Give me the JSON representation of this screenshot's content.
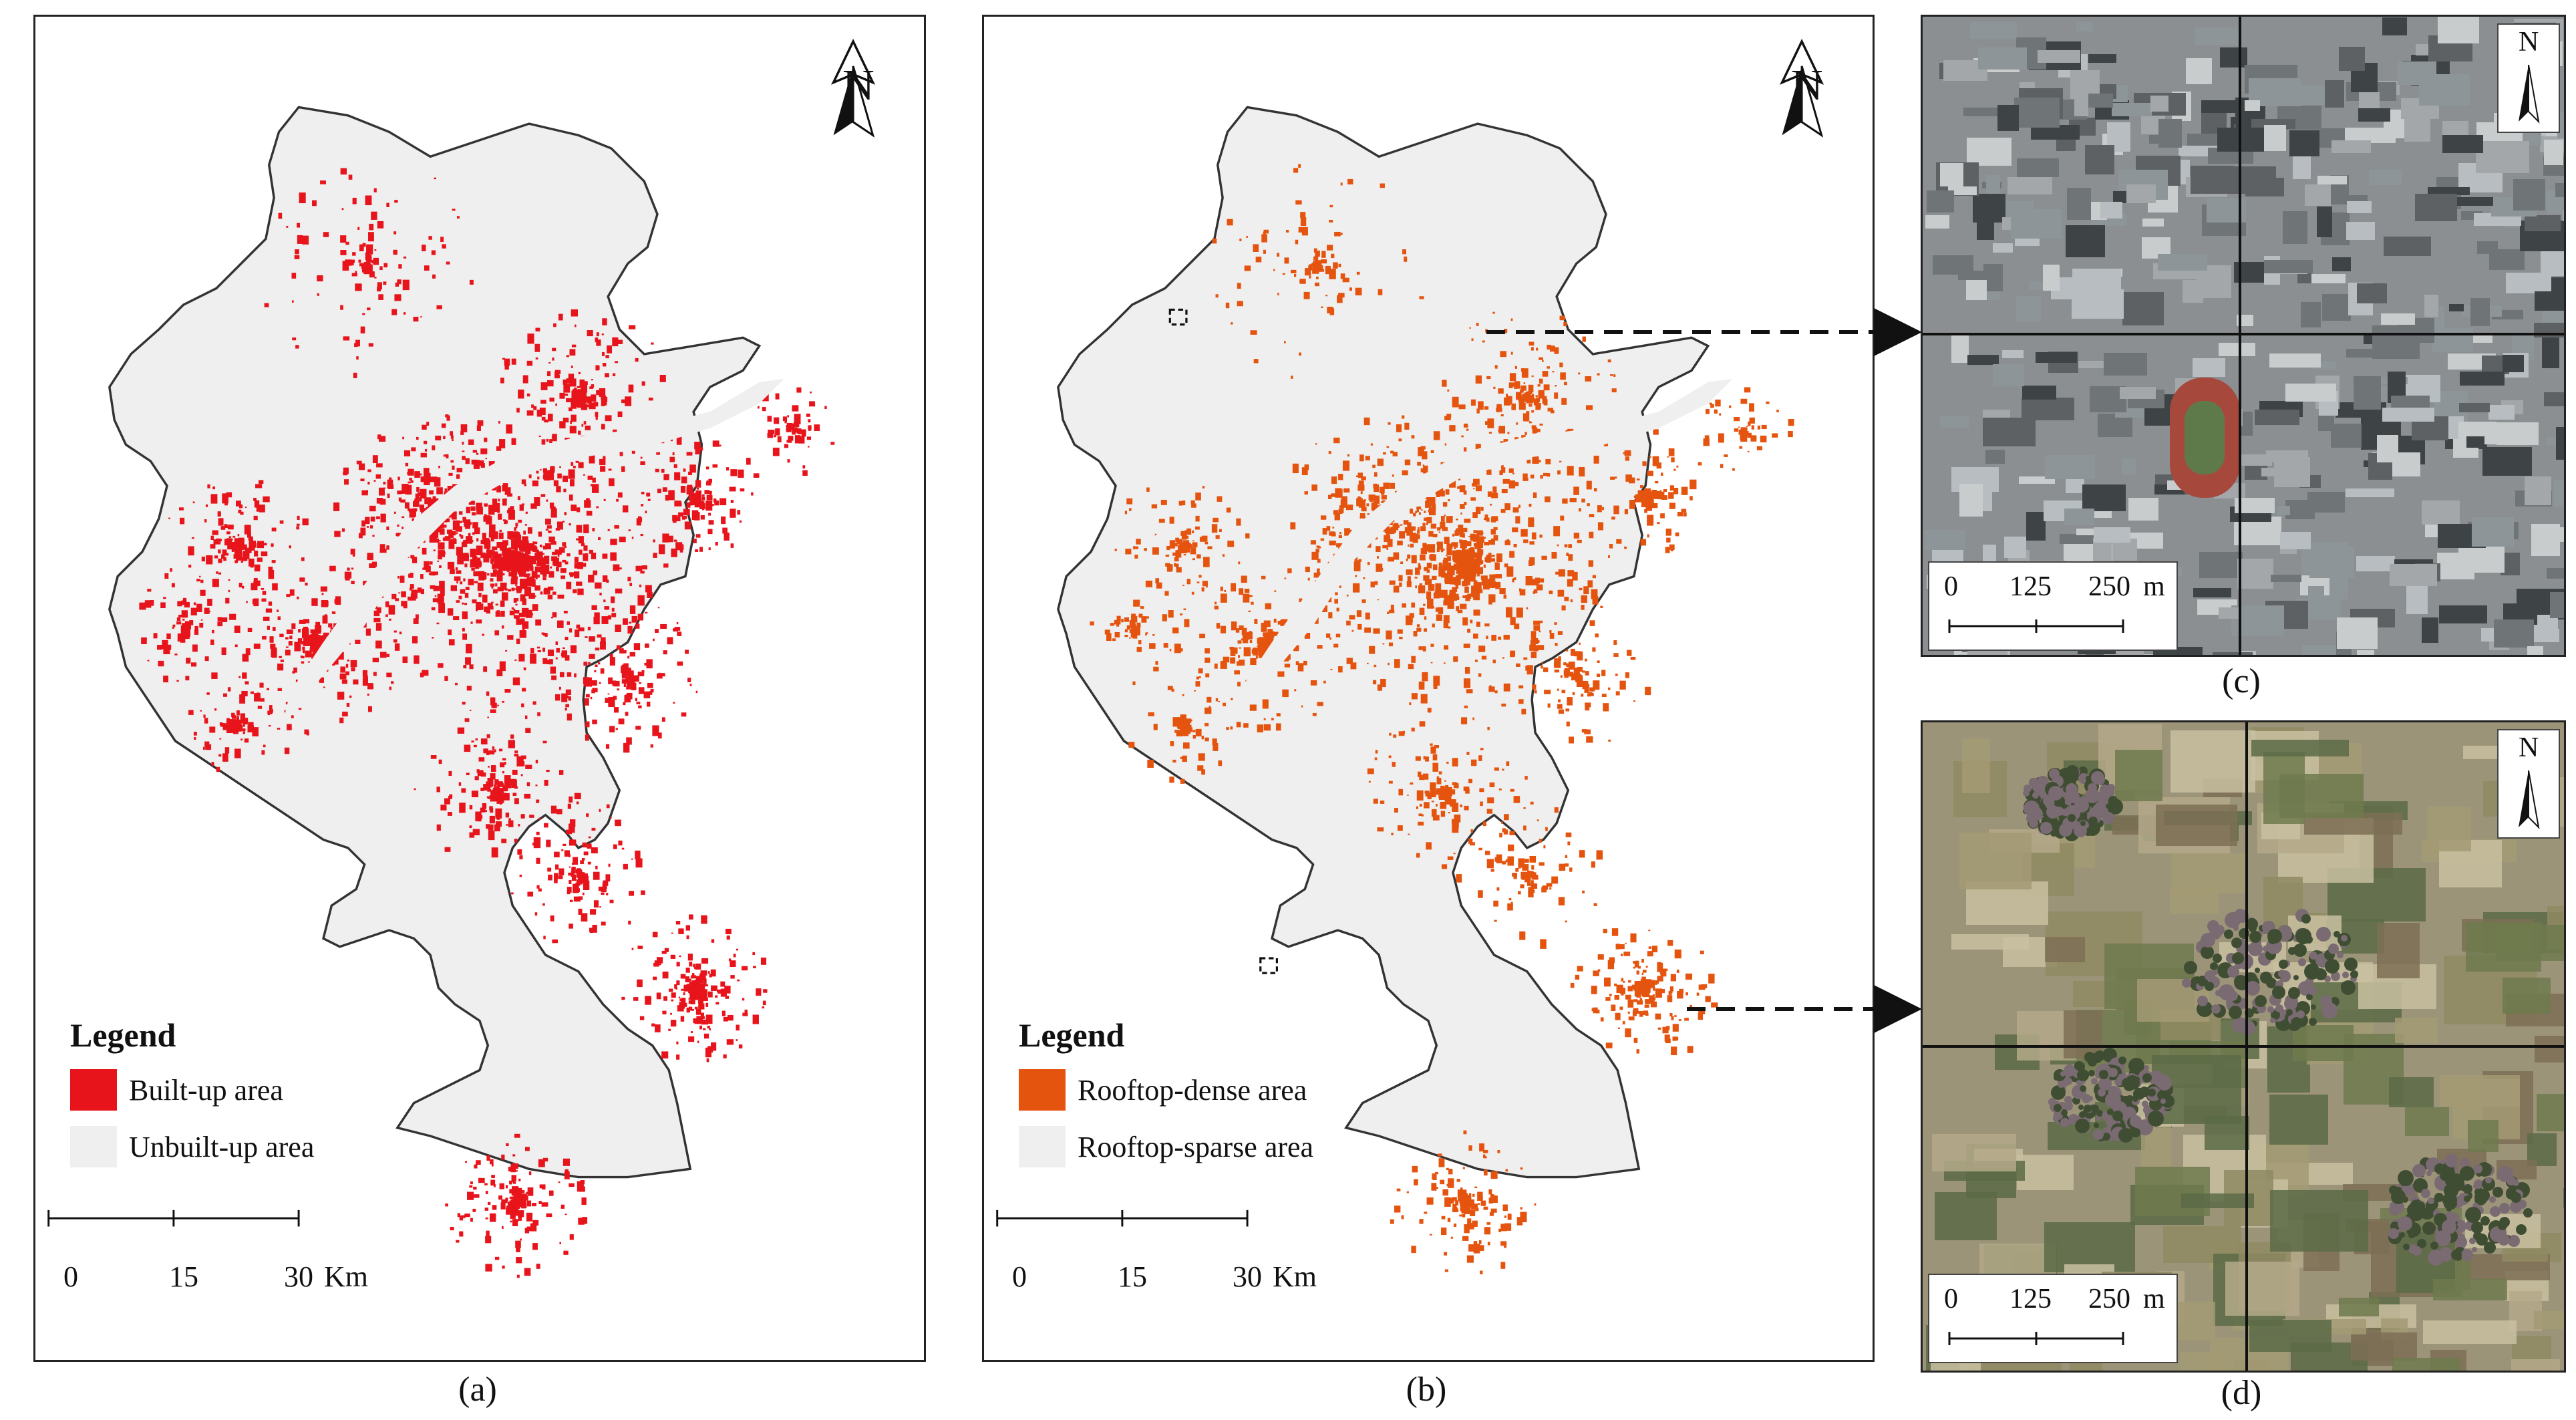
{
  "panels": {
    "a": {
      "caption": "(a)",
      "north": "N",
      "legend": {
        "title": "Legend",
        "items": [
          {
            "label": "Built-up area",
            "color": "#e8141b"
          },
          {
            "label": "Unbuilt-up area",
            "color": "#efefef"
          }
        ]
      },
      "scale": {
        "ticks": [
          "0",
          "15",
          "30"
        ],
        "unit": "Km"
      }
    },
    "b": {
      "caption": "(b)",
      "north": "N",
      "legend": {
        "title": "Legend",
        "items": [
          {
            "label": "Rooftop-dense area",
            "color": "#e5540f"
          },
          {
            "label": "Rooftop-sparse area",
            "color": "#efefef"
          }
        ]
      },
      "scale": {
        "ticks": [
          "0",
          "15",
          "30"
        ],
        "unit": "Km"
      }
    },
    "c": {
      "caption": "(c)",
      "north": "N",
      "scale": {
        "ticks": [
          "0",
          "125",
          "250"
        ],
        "unit": "m"
      }
    },
    "d": {
      "caption": "(d)",
      "north": "N",
      "scale": {
        "ticks": [
          "0",
          "125",
          "250"
        ],
        "unit": "m"
      }
    }
  },
  "colors": {
    "map_base": "#efefef",
    "built_up": "#e8141b",
    "rooftop_dense": "#e5540f",
    "outline": "#333333"
  }
}
